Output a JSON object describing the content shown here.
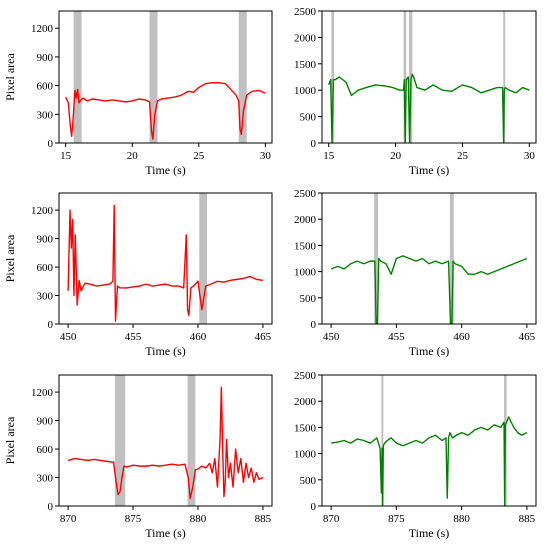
{
  "figure": {
    "background": "#ffffff",
    "red_color": "#ff0000",
    "green_color": "#008000",
    "shade_color": "#c0c0c0"
  },
  "chart_data": [
    {
      "type": "line",
      "xlabel": "Time (s)",
      "ylabel": "Pixel area",
      "xlim": [
        14.5,
        30.5
      ],
      "ylim": [
        0,
        1380
      ],
      "xticks": [
        15,
        20,
        25,
        30
      ],
      "yticks": [
        0,
        300,
        600,
        900,
        1200
      ],
      "grid": false,
      "series_color": "red",
      "shaded_intervals": [
        [
          15.6,
          16.2
        ],
        [
          21.3,
          21.9
        ],
        [
          28.0,
          28.6
        ]
      ],
      "x": [
        15.0,
        15.2,
        15.35,
        15.45,
        15.55,
        15.7,
        15.8,
        15.9,
        16.0,
        16.1,
        16.3,
        16.6,
        17.0,
        17.5,
        18.0,
        18.5,
        19.0,
        19.5,
        20.0,
        20.5,
        21.0,
        21.3,
        21.45,
        21.55,
        21.7,
        21.9,
        22.2,
        22.7,
        23.2,
        23.7,
        24.2,
        24.6,
        25.0,
        25.5,
        26.0,
        26.5,
        27.0,
        27.4,
        27.8,
        28.0,
        28.1,
        28.2,
        28.35,
        28.6,
        29.0,
        29.5,
        30.0
      ],
      "y": [
        480,
        420,
        180,
        70,
        230,
        550,
        470,
        560,
        420,
        440,
        470,
        440,
        460,
        450,
        440,
        450,
        440,
        430,
        440,
        460,
        450,
        430,
        120,
        40,
        300,
        440,
        460,
        470,
        480,
        500,
        540,
        530,
        580,
        620,
        630,
        630,
        620,
        560,
        500,
        440,
        140,
        90,
        330,
        500,
        540,
        550,
        520
      ]
    },
    {
      "type": "line",
      "xlabel": "Time (s)",
      "ylabel": "",
      "xlim": [
        14.5,
        30.5
      ],
      "ylim": [
        0,
        2500
      ],
      "xticks": [
        15,
        20,
        25,
        30
      ],
      "yticks": [
        0,
        500,
        1000,
        1500,
        2000,
        2500
      ],
      "grid": false,
      "series_color": "green",
      "shaded_intervals": [
        [
          15.2,
          15.4
        ],
        [
          20.6,
          20.8
        ],
        [
          21.0,
          21.25
        ],
        [
          28.05,
          28.2
        ]
      ],
      "x": [
        15.0,
        15.15,
        15.25,
        15.35,
        15.5,
        15.8,
        16.3,
        16.7,
        17.2,
        17.8,
        18.5,
        19.2,
        19.8,
        20.3,
        20.6,
        20.65,
        20.72,
        20.8,
        20.95,
        21.05,
        21.15,
        21.25,
        21.35,
        21.6,
        22.2,
        22.8,
        23.5,
        24.2,
        25.0,
        25.7,
        26.4,
        27.0,
        27.6,
        28.0,
        28.08,
        28.13,
        28.2,
        28.5,
        29.0,
        29.5,
        30.0
      ],
      "y": [
        1100,
        1200,
        0,
        1200,
        1200,
        1250,
        1150,
        900,
        1000,
        1050,
        1100,
        1080,
        1050,
        1000,
        1000,
        1200,
        0,
        1200,
        1250,
        0,
        1200,
        1300,
        1250,
        1050,
        1000,
        1100,
        1000,
        980,
        1100,
        1050,
        950,
        1000,
        1050,
        1050,
        0,
        1000,
        1050,
        1000,
        950,
        1050,
        1000
      ]
    },
    {
      "type": "line",
      "xlabel": "Time (s)",
      "ylabel": "Pixel area",
      "xlim": [
        449.3,
        465.7
      ],
      "ylim": [
        0,
        1380
      ],
      "xticks": [
        450,
        455,
        460,
        465
      ],
      "yticks": [
        0,
        300,
        600,
        900,
        1200
      ],
      "grid": false,
      "series_color": "red",
      "shaded_intervals": [
        [
          460.1,
          460.7
        ]
      ],
      "x": [
        450.0,
        450.15,
        450.25,
        450.35,
        450.45,
        450.55,
        450.7,
        450.85,
        451.0,
        451.3,
        451.7,
        452.2,
        452.7,
        453.2,
        453.45,
        453.55,
        453.65,
        453.8,
        454.0,
        454.5,
        455.0,
        455.5,
        456.0,
        456.5,
        457.0,
        457.5,
        458.0,
        458.5,
        458.9,
        459.1,
        459.2,
        459.3,
        459.45,
        459.65,
        460.0,
        460.3,
        460.6,
        461.0,
        461.5,
        462.0,
        462.5,
        463.0,
        463.5,
        464.0,
        464.5,
        465.0
      ],
      "y": [
        350,
        1200,
        800,
        1100,
        300,
        940,
        200,
        460,
        350,
        430,
        420,
        400,
        410,
        420,
        450,
        1250,
        30,
        400,
        380,
        380,
        390,
        400,
        420,
        400,
        410,
        420,
        400,
        400,
        380,
        940,
        150,
        90,
        380,
        400,
        450,
        150,
        400,
        420,
        450,
        440,
        460,
        470,
        480,
        500,
        470,
        460
      ]
    },
    {
      "type": "line",
      "xlabel": "Time (s)",
      "ylabel": "",
      "xlim": [
        449.3,
        465.7
      ],
      "ylim": [
        0,
        2500
      ],
      "xticks": [
        450,
        455,
        460,
        465
      ],
      "yticks": [
        0,
        500,
        1000,
        1500,
        2000,
        2500
      ],
      "grid": false,
      "series_color": "green",
      "shaded_intervals": [
        [
          453.3,
          453.6
        ],
        [
          459.1,
          459.4
        ]
      ],
      "x": [
        450.0,
        450.5,
        451.0,
        451.5,
        452.0,
        452.5,
        453.0,
        453.35,
        453.45,
        453.55,
        453.65,
        453.8,
        454.2,
        454.6,
        455.0,
        455.5,
        456.0,
        456.5,
        457.0,
        457.5,
        458.0,
        458.5,
        459.0,
        459.15,
        459.25,
        459.35,
        459.5,
        460.0,
        460.5,
        461.0,
        461.5,
        462.0,
        462.5,
        463.0,
        463.5,
        464.0,
        464.5,
        465.0
      ],
      "y": [
        1050,
        1100,
        1050,
        1150,
        1200,
        1150,
        1200,
        1200,
        0,
        0,
        1250,
        1200,
        1150,
        950,
        1250,
        1300,
        1250,
        1200,
        1250,
        1150,
        1200,
        1150,
        1200,
        0,
        0,
        1200,
        1150,
        1100,
        950,
        950,
        1000,
        950,
        1000,
        1050,
        1100,
        1150,
        1200,
        1250
      ]
    },
    {
      "type": "line",
      "xlabel": "Time (s)",
      "ylabel": "Pixel area",
      "xlim": [
        869.3,
        885.7
      ],
      "ylim": [
        0,
        1380
      ],
      "xticks": [
        870,
        875,
        880,
        885
      ],
      "yticks": [
        0,
        300,
        600,
        900,
        1200
      ],
      "grid": false,
      "series_color": "red",
      "shaded_intervals": [
        [
          873.6,
          874.4
        ],
        [
          879.2,
          879.8
        ]
      ],
      "x": [
        870.0,
        870.5,
        871.0,
        871.5,
        872.0,
        872.5,
        873.0,
        873.5,
        873.7,
        873.85,
        874.0,
        874.15,
        874.3,
        874.5,
        875.0,
        875.5,
        876.0,
        876.5,
        877.0,
        877.5,
        878.0,
        878.5,
        879.0,
        879.25,
        879.4,
        879.6,
        879.8,
        880.0,
        880.3,
        880.6,
        880.9,
        881.1,
        881.3,
        881.5,
        881.7,
        881.8,
        881.9,
        882.0,
        882.1,
        882.2,
        882.35,
        882.5,
        882.7,
        882.9,
        883.1,
        883.3,
        883.5,
        883.7,
        883.9,
        884.1,
        884.3,
        884.5,
        884.7,
        885.0
      ],
      "y": [
        480,
        500,
        490,
        480,
        490,
        480,
        470,
        460,
        250,
        120,
        150,
        300,
        420,
        410,
        430,
        420,
        420,
        430,
        420,
        430,
        440,
        430,
        440,
        300,
        80,
        200,
        380,
        390,
        420,
        400,
        450,
        350,
        500,
        200,
        700,
        1250,
        600,
        100,
        250,
        700,
        300,
        450,
        200,
        600,
        350,
        500,
        250,
        450,
        300,
        400,
        250,
        350,
        280,
        300
      ]
    },
    {
      "type": "line",
      "xlabel": "Time (s)",
      "ylabel": "",
      "xlim": [
        869.3,
        885.7
      ],
      "ylim": [
        0,
        2500
      ],
      "xticks": [
        870,
        875,
        880,
        885
      ],
      "yticks": [
        0,
        500,
        1000,
        1500,
        2000,
        2500
      ],
      "grid": false,
      "series_color": "green",
      "shaded_intervals": [
        [
          873.85,
          874.0
        ],
        [
          883.25,
          883.45
        ]
      ],
      "x": [
        870.0,
        870.5,
        871.0,
        871.5,
        872.0,
        872.5,
        873.0,
        873.5,
        873.75,
        873.85,
        873.9,
        873.95,
        874.0,
        874.1,
        874.3,
        874.6,
        875.0,
        875.5,
        876.0,
        876.5,
        877.0,
        877.5,
        878.0,
        878.5,
        878.8,
        878.9,
        879.0,
        879.1,
        879.3,
        879.6,
        880.0,
        880.5,
        881.0,
        881.5,
        882.0,
        882.5,
        883.0,
        883.25,
        883.3,
        883.35,
        883.45,
        883.6,
        883.8,
        884.0,
        884.3,
        884.6,
        885.0
      ],
      "y": [
        1200,
        1220,
        1250,
        1200,
        1280,
        1250,
        1200,
        1300,
        1100,
        250,
        1100,
        0,
        1150,
        1200,
        1250,
        1300,
        1200,
        1150,
        1200,
        1250,
        1200,
        1300,
        1350,
        1250,
        1300,
        150,
        1300,
        1400,
        1300,
        1350,
        1400,
        1350,
        1450,
        1500,
        1450,
        1550,
        1500,
        1600,
        0,
        1550,
        1600,
        1700,
        1600,
        1500,
        1400,
        1350,
        1400
      ]
    }
  ]
}
